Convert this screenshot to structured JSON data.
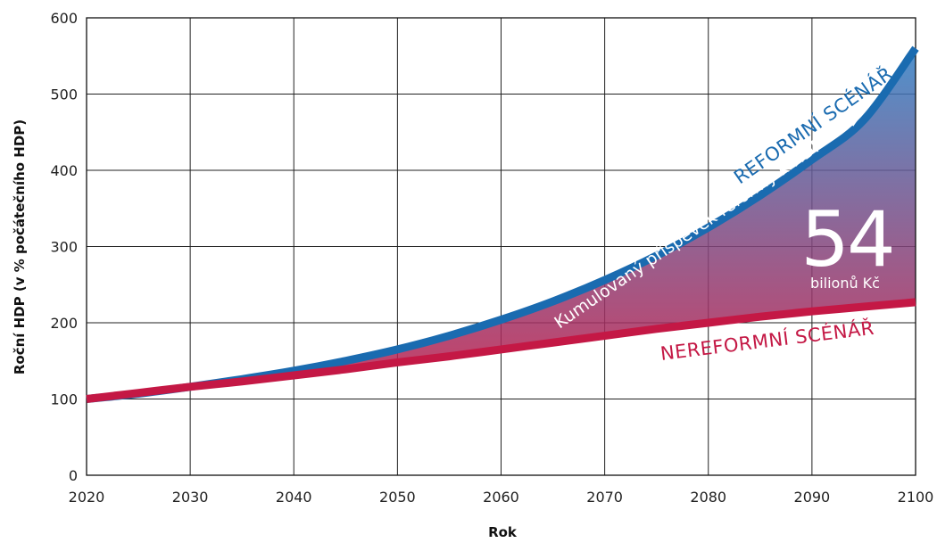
{
  "chart_data": {
    "type": "line",
    "title": "",
    "xlabel": "Rok",
    "ylabel": "Roční HDP (v % počátečního HDP)",
    "xlim": [
      2020,
      2100
    ],
    "ylim": [
      0,
      600
    ],
    "x_ticks": [
      "2020",
      "2030",
      "2040",
      "2050",
      "2060",
      "2070",
      "2080",
      "2090",
      "2100"
    ],
    "y_ticks": [
      "0",
      "100",
      "200",
      "300",
      "400",
      "500",
      "600"
    ],
    "grid": true,
    "x": [
      2020,
      2025,
      2030,
      2035,
      2040,
      2045,
      2050,
      2055,
      2060,
      2065,
      2070,
      2075,
      2080,
      2085,
      2090,
      2095,
      2100
    ],
    "series": [
      {
        "name": "REFORMNÍ SCÉNÁŘ",
        "color": "#1a6bb0",
        "values": [
          100,
          107,
          116,
          126,
          137,
          150,
          165,
          183,
          204,
          228,
          256,
          288,
          325,
          367,
          414,
          466,
          560
        ]
      },
      {
        "name": "NEREFORMNÍ SCÉNÁŘ",
        "color": "#c41845",
        "values": [
          100,
          108,
          116,
          123,
          131,
          139,
          148,
          156,
          165,
          174,
          183,
          192,
          200,
          208,
          215,
          221,
          227
        ]
      }
    ],
    "fill_between": {
      "label": "Kumulovaný příspěvek reformy k HDP >>>",
      "value": "54",
      "unit": "bilionů Kč",
      "color_top": "#2f7fc4",
      "color_bottom": "#c41845"
    }
  }
}
